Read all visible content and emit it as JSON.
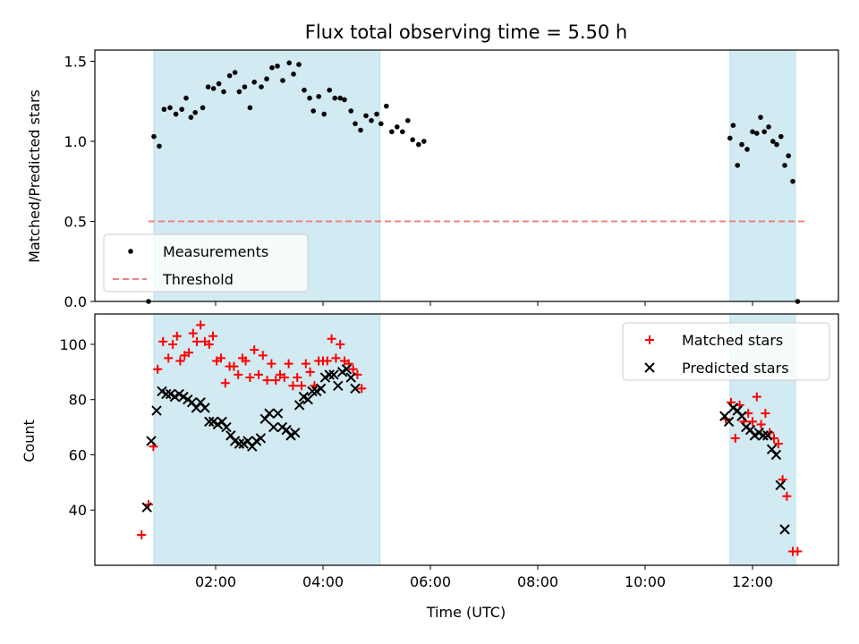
{
  "chart_data": [
    {
      "type": "scatter",
      "title": "Flux total observing time = 5.50 h",
      "ylabel": "Matched/Predicted stars",
      "xlabel": "",
      "x_unit": "hours UTC",
      "xlim": [
        -0.25,
        13.6
      ],
      "ylim": [
        0,
        1.57
      ],
      "yticks": [
        0.0,
        0.5,
        1.0,
        1.5
      ],
      "yticklabels": [
        "0.0",
        "0.5",
        "1.0",
        "1.5"
      ],
      "shaded_intervals": [
        [
          0.85,
          5.06
        ],
        [
          11.58,
          12.8
        ]
      ],
      "shade_color": "#add8e6",
      "legend_position": "lower-left",
      "series": [
        {
          "name": "Measurements",
          "marker": "dot",
          "color": "#000000",
          "points": [
            [
              0.75,
              0.0
            ],
            [
              0.85,
              1.03
            ],
            [
              0.95,
              0.97
            ],
            [
              1.04,
              1.2
            ],
            [
              1.15,
              1.21
            ],
            [
              1.26,
              1.17
            ],
            [
              1.37,
              1.2
            ],
            [
              1.45,
              1.27
            ],
            [
              1.54,
              1.15
            ],
            [
              1.62,
              1.18
            ],
            [
              1.76,
              1.21
            ],
            [
              1.86,
              1.34
            ],
            [
              1.96,
              1.33
            ],
            [
              2.06,
              1.36
            ],
            [
              2.15,
              1.31
            ],
            [
              2.26,
              1.41
            ],
            [
              2.36,
              1.43
            ],
            [
              2.44,
              1.31
            ],
            [
              2.54,
              1.34
            ],
            [
              2.64,
              1.21
            ],
            [
              2.72,
              1.37
            ],
            [
              2.85,
              1.34
            ],
            [
              2.95,
              1.39
            ],
            [
              3.05,
              1.46
            ],
            [
              3.15,
              1.47
            ],
            [
              3.25,
              1.38
            ],
            [
              3.37,
              1.49
            ],
            [
              3.45,
              1.42
            ],
            [
              3.55,
              1.48
            ],
            [
              3.65,
              1.32
            ],
            [
              3.75,
              1.27
            ],
            [
              3.82,
              1.19
            ],
            [
              3.92,
              1.28
            ],
            [
              4.02,
              1.17
            ],
            [
              4.12,
              1.32
            ],
            [
              4.22,
              1.27
            ],
            [
              4.32,
              1.27
            ],
            [
              4.4,
              1.26
            ],
            [
              4.52,
              1.19
            ],
            [
              4.6,
              1.11
            ],
            [
              4.7,
              1.07
            ],
            [
              4.8,
              1.16
            ],
            [
              4.9,
              1.13
            ],
            [
              5.0,
              1.17
            ],
            [
              5.08,
              1.11
            ],
            [
              5.18,
              1.22
            ],
            [
              5.28,
              1.06
            ],
            [
              5.38,
              1.09
            ],
            [
              5.48,
              1.06
            ],
            [
              5.58,
              1.13
            ],
            [
              5.67,
              1.01
            ],
            [
              5.78,
              0.98
            ],
            [
              5.88,
              1.0
            ],
            [
              11.58,
              1.02
            ],
            [
              11.64,
              1.1
            ],
            [
              11.72,
              0.85
            ],
            [
              11.8,
              0.98
            ],
            [
              11.9,
              0.95
            ],
            [
              12.0,
              1.06
            ],
            [
              12.08,
              1.05
            ],
            [
              12.15,
              1.15
            ],
            [
              12.22,
              1.06
            ],
            [
              12.3,
              1.09
            ],
            [
              12.38,
              1.0
            ],
            [
              12.45,
              0.98
            ],
            [
              12.53,
              1.03
            ],
            [
              12.6,
              0.85
            ],
            [
              12.67,
              0.91
            ],
            [
              12.75,
              0.75
            ],
            [
              12.84,
              0.0
            ]
          ]
        },
        {
          "name": "Threshold",
          "line": "dashed",
          "color": "#f08080",
          "points": [
            [
              0.75,
              0.5
            ],
            [
              13.0,
              0.5
            ]
          ]
        }
      ]
    },
    {
      "type": "scatter",
      "title": "",
      "ylabel": "Count",
      "xlabel": "Time (UTC)",
      "x_unit": "hours UTC",
      "xlim": [
        -0.25,
        13.6
      ],
      "ylim": [
        20,
        111
      ],
      "yticks": [
        40,
        60,
        80,
        100
      ],
      "yticklabels": [
        "40",
        "60",
        "80",
        "100"
      ],
      "xticks": [
        2,
        4,
        6,
        8,
        10,
        12
      ],
      "xticklabels": [
        "02:00",
        "04:00",
        "06:00",
        "08:00",
        "10:00",
        "12:00"
      ],
      "shaded_intervals": [
        [
          0.85,
          5.06
        ],
        [
          11.58,
          12.8
        ]
      ],
      "shade_color": "#add8e6",
      "legend_position": "upper-right",
      "series": [
        {
          "name": "Matched stars",
          "marker": "plus",
          "color": "#ff0000",
          "points": [
            [
              0.62,
              31
            ],
            [
              0.75,
              42
            ],
            [
              0.84,
              63
            ],
            [
              0.92,
              91
            ],
            [
              1.02,
              101
            ],
            [
              1.12,
              95
            ],
            [
              1.2,
              100
            ],
            [
              1.28,
              103
            ],
            [
              1.34,
              94
            ],
            [
              1.42,
              96
            ],
            [
              1.5,
              97
            ],
            [
              1.58,
              104
            ],
            [
              1.65,
              101
            ],
            [
              1.72,
              107
            ],
            [
              1.8,
              101
            ],
            [
              1.88,
              100
            ],
            [
              1.95,
              103
            ],
            [
              2.02,
              94
            ],
            [
              2.1,
              95
            ],
            [
              2.18,
              86
            ],
            [
              2.26,
              92
            ],
            [
              2.34,
              92
            ],
            [
              2.42,
              89
            ],
            [
              2.5,
              95
            ],
            [
              2.56,
              94
            ],
            [
              2.64,
              88
            ],
            [
              2.72,
              98
            ],
            [
              2.8,
              89
            ],
            [
              2.88,
              96
            ],
            [
              2.96,
              87
            ],
            [
              3.04,
              93
            ],
            [
              3.12,
              87
            ],
            [
              3.2,
              89
            ],
            [
              3.28,
              88
            ],
            [
              3.36,
              93
            ],
            [
              3.44,
              85
            ],
            [
              3.52,
              88
            ],
            [
              3.6,
              85
            ],
            [
              3.68,
              93
            ],
            [
              3.76,
              90
            ],
            [
              3.84,
              85
            ],
            [
              3.92,
              94
            ],
            [
              4.0,
              94
            ],
            [
              4.08,
              94
            ],
            [
              4.16,
              102
            ],
            [
              4.24,
              95
            ],
            [
              4.32,
              100
            ],
            [
              4.4,
              94
            ],
            [
              4.48,
              93
            ],
            [
              4.56,
              91
            ],
            [
              4.64,
              89
            ],
            [
              4.72,
              84
            ],
            [
              11.5,
              73
            ],
            [
              11.6,
              79
            ],
            [
              11.68,
              66
            ],
            [
              11.76,
              78
            ],
            [
              11.84,
              72
            ],
            [
              11.92,
              75
            ],
            [
              12.0,
              72
            ],
            [
              12.08,
              81
            ],
            [
              12.16,
              71
            ],
            [
              12.24,
              75
            ],
            [
              12.32,
              68
            ],
            [
              12.4,
              66
            ],
            [
              12.48,
              64
            ],
            [
              12.56,
              51
            ],
            [
              12.64,
              45
            ],
            [
              12.75,
              25
            ],
            [
              12.84,
              25
            ]
          ]
        },
        {
          "name": "Predicted stars",
          "marker": "x",
          "color": "#000000",
          "points": [
            [
              0.72,
              41
            ],
            [
              0.8,
              65
            ],
            [
              0.9,
              76
            ],
            [
              1.0,
              83
            ],
            [
              1.08,
              82
            ],
            [
              1.16,
              82
            ],
            [
              1.24,
              81
            ],
            [
              1.32,
              82
            ],
            [
              1.4,
              81
            ],
            [
              1.48,
              80
            ],
            [
              1.56,
              79
            ],
            [
              1.64,
              77
            ],
            [
              1.72,
              79
            ],
            [
              1.8,
              77
            ],
            [
              1.88,
              72
            ],
            [
              1.96,
              72
            ],
            [
              2.04,
              71
            ],
            [
              2.12,
              72
            ],
            [
              2.2,
              70
            ],
            [
              2.28,
              67
            ],
            [
              2.36,
              65
            ],
            [
              2.44,
              64
            ],
            [
              2.52,
              64
            ],
            [
              2.6,
              65
            ],
            [
              2.68,
              63
            ],
            [
              2.76,
              65
            ],
            [
              2.84,
              66
            ],
            [
              2.92,
              73
            ],
            [
              3.0,
              75
            ],
            [
              3.08,
              70
            ],
            [
              3.16,
              75
            ],
            [
              3.24,
              70
            ],
            [
              3.32,
              69
            ],
            [
              3.4,
              67
            ],
            [
              3.48,
              68
            ],
            [
              3.56,
              78
            ],
            [
              3.64,
              81
            ],
            [
              3.72,
              80
            ],
            [
              3.8,
              83
            ],
            [
              3.88,
              83
            ],
            [
              3.96,
              84
            ],
            [
              4.04,
              88
            ],
            [
              4.12,
              89
            ],
            [
              4.2,
              89
            ],
            [
              4.28,
              85
            ],
            [
              4.36,
              90
            ],
            [
              4.44,
              91
            ],
            [
              4.52,
              88
            ],
            [
              4.6,
              84
            ],
            [
              11.48,
              74
            ],
            [
              11.56,
              72
            ],
            [
              11.64,
              77
            ],
            [
              11.72,
              76
            ],
            [
              11.8,
              74
            ],
            [
              11.88,
              70
            ],
            [
              11.96,
              69
            ],
            [
              12.04,
              67
            ],
            [
              12.12,
              68
            ],
            [
              12.2,
              67
            ],
            [
              12.28,
              67
            ],
            [
              12.36,
              62
            ],
            [
              12.44,
              60
            ],
            [
              12.52,
              49
            ],
            [
              12.6,
              33
            ]
          ]
        }
      ]
    }
  ]
}
